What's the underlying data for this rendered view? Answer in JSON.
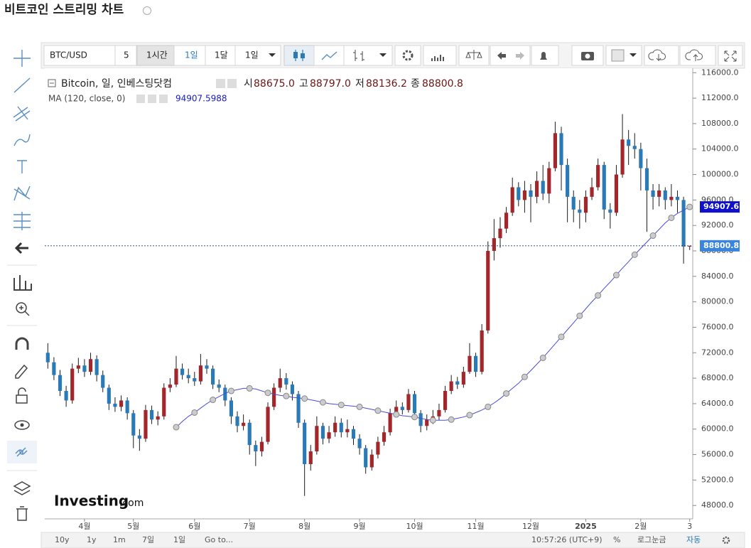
{
  "page": {
    "title": "비트코인 스트리밍 차트"
  },
  "toolbar": {
    "symbol": "BTC/USD",
    "interval_input": "5",
    "intervals": [
      "1시간",
      "1일",
      "1달"
    ],
    "range": "1일"
  },
  "footer": {
    "ranges": [
      "10y",
      "1y",
      "1m",
      "7일",
      "1일"
    ],
    "goto": "Go to...",
    "clock": "10:57:26 (UTC+9)",
    "percent": "%",
    "log": "로그눈금",
    "auto": "자동"
  },
  "chart_data": {
    "type": "candlestick",
    "title": "Bitcoin, 일, 인베스팅닷컴",
    "ohlc_legend": [
      {
        "label": "시",
        "value": "88675.0"
      },
      {
        "label": "고",
        "value": "88797.0"
      },
      {
        "label": "저",
        "value": "88136.2"
      },
      {
        "label": "종",
        "value": "88800.8"
      }
    ],
    "watermark": {
      "brand": "Investing",
      "suffix": ".com"
    },
    "color_up": "#a3262a",
    "color_down": "#2a7ab8",
    "wick_color": "#1b1b1b",
    "categories": [
      null,
      null,
      null,
      null,
      null,
      null,
      "4월",
      null,
      null,
      null,
      null,
      null,
      null,
      null,
      "5월",
      null,
      null,
      null,
      null,
      null,
      null,
      null,
      null,
      null,
      "6월",
      null,
      null,
      null,
      null,
      null,
      null,
      null,
      null,
      "7월",
      null,
      null,
      null,
      null,
      null,
      null,
      null,
      null,
      "8월",
      null,
      null,
      null,
      null,
      null,
      null,
      null,
      null,
      "9월",
      null,
      null,
      null,
      null,
      null,
      null,
      null,
      null,
      "10월",
      null,
      null,
      null,
      null,
      null,
      null,
      null,
      null,
      null,
      "11월",
      null,
      null,
      null,
      null,
      null,
      null,
      null,
      null,
      "12월",
      null,
      null,
      null,
      null,
      null,
      null,
      null,
      null,
      "2025",
      null,
      null,
      null,
      null,
      null,
      null,
      null,
      null,
      "2월",
      null,
      null,
      null,
      null,
      null,
      null,
      null,
      "3"
    ],
    "open": [
      72000,
      70500,
      68500,
      66000,
      64500,
      69500,
      70000,
      69000,
      71000,
      68500,
      66500,
      64000,
      63500,
      64500,
      62500,
      59000,
      58500,
      63000,
      61500,
      62000,
      66500,
      67000,
      69500,
      68500,
      68000,
      67500,
      70000,
      69500,
      67000,
      66500,
      64500,
      62000,
      60500,
      61000,
      57500,
      56500,
      58000,
      63500,
      66500,
      68000,
      67000,
      65500,
      61000,
      54500,
      56500,
      60500,
      58500,
      59500,
      61000,
      59500,
      60000,
      58500,
      57000,
      54000,
      56000,
      58000,
      59500,
      62500,
      63500,
      63000,
      65500,
      62500,
      60500,
      61500,
      62000,
      63000,
      66000,
      67500,
      67000,
      69000,
      71500,
      69000,
      75500,
      88000,
      90000,
      91500,
      94000,
      98000,
      96000,
      97500,
      96500,
      99000,
      97000,
      101000,
      106500,
      101500,
      96500,
      94500,
      94000,
      96500,
      98000,
      101500,
      94500,
      94000,
      100000,
      105500,
      104500,
      104000,
      101000,
      97500,
      96500,
      97500,
      96000,
      96500,
      96000,
      88675
    ],
    "high": [
      73500,
      71300,
      69300,
      66800,
      70300,
      71200,
      71000,
      72000,
      71600,
      69200,
      67000,
      65000,
      65300,
      65000,
      63000,
      60000,
      63800,
      63700,
      62800,
      67200,
      68000,
      71500,
      70300,
      69500,
      69000,
      71800,
      71000,
      70000,
      67800,
      67000,
      65000,
      62800,
      62300,
      61500,
      58200,
      58800,
      64200,
      67200,
      69500,
      68800,
      67500,
      66000,
      61500,
      57500,
      62000,
      61000,
      60500,
      62000,
      61700,
      61500,
      60500,
      59200,
      57500,
      56800,
      58800,
      60500,
      63200,
      64500,
      64200,
      66300,
      66000,
      63000,
      62300,
      63000,
      64000,
      66800,
      68500,
      68200,
      69800,
      73500,
      72000,
      76500,
      89500,
      93000,
      93300,
      94900,
      99500,
      98800,
      99000,
      98500,
      100500,
      101500,
      102000,
      108300,
      107500,
      102500,
      97500,
      96000,
      97500,
      99500,
      102500,
      102000,
      95500,
      101500,
      109500,
      107000,
      106500,
      105000,
      102500,
      98500,
      98500,
      98000,
      98500,
      97500,
      96500,
      88797
    ],
    "low": [
      69500,
      67700,
      65200,
      63500,
      64000,
      68800,
      68200,
      68500,
      67500,
      65800,
      63000,
      62700,
      62800,
      61500,
      57000,
      56600,
      58000,
      60800,
      60600,
      61500,
      65800,
      66600,
      67800,
      67200,
      66800,
      67000,
      68700,
      66300,
      65800,
      63600,
      60800,
      59500,
      59800,
      56000,
      54200,
      55700,
      57600,
      63000,
      65800,
      66200,
      64500,
      60200,
      49500,
      53500,
      56000,
      57600,
      57800,
      58800,
      58700,
      58700,
      57500,
      56000,
      53000,
      53500,
      55400,
      57400,
      59000,
      62000,
      62300,
      62600,
      61600,
      59500,
      59800,
      60800,
      61400,
      62600,
      65500,
      66300,
      66500,
      68700,
      68200,
      68600,
      75000,
      86500,
      88500,
      90800,
      93500,
      95000,
      94000,
      92500,
      95500,
      96000,
      95500,
      100500,
      97500,
      92500,
      92500,
      91500,
      92500,
      96000,
      97500,
      93000,
      91500,
      93500,
      99500,
      101500,
      102500,
      97500,
      91000,
      94500,
      95000,
      94500,
      95000,
      94000,
      86000,
      88136
    ],
    "close": [
      70500,
      68500,
      66000,
      64500,
      69500,
      70000,
      69000,
      71000,
      68500,
      66500,
      64000,
      63500,
      64500,
      62500,
      59000,
      58500,
      63000,
      61500,
      62000,
      66500,
      67000,
      69500,
      68500,
      68000,
      67500,
      70000,
      69500,
      67000,
      66500,
      64500,
      62000,
      60500,
      61000,
      57500,
      56500,
      58000,
      63500,
      66500,
      68000,
      67000,
      65500,
      61000,
      54500,
      56500,
      60500,
      58500,
      59500,
      61000,
      59500,
      60000,
      58500,
      57000,
      54000,
      56000,
      58000,
      59500,
      62500,
      63500,
      63000,
      65500,
      62500,
      60500,
      61500,
      62000,
      63000,
      66000,
      67500,
      67000,
      69000,
      71500,
      69000,
      75500,
      88000,
      90000,
      91500,
      94000,
      98000,
      96000,
      97500,
      96500,
      99000,
      97000,
      101000,
      106500,
      101500,
      96500,
      94500,
      94000,
      96500,
      98000,
      101500,
      94500,
      94000,
      100000,
      105500,
      104500,
      104000,
      101000,
      97500,
      96500,
      97500,
      96000,
      96500,
      96000,
      88675,
      88800.8
    ],
    "last_price": {
      "value": 88800.8,
      "label": "88800.8"
    },
    "ma": {
      "name": "MA (120, close, 0)",
      "color": "#4a4ad8",
      "legend_value": "94907.5988",
      "value_label": "94907.6",
      "values": [
        null,
        null,
        null,
        null,
        null,
        null,
        null,
        null,
        null,
        null,
        null,
        null,
        null,
        null,
        null,
        null,
        null,
        null,
        null,
        null,
        null,
        60300,
        61200,
        62000,
        62600,
        63300,
        64000,
        64600,
        65100,
        65600,
        66000,
        66200,
        66400,
        66400,
        66300,
        66000,
        65700,
        65500,
        65300,
        65200,
        65000,
        64900,
        64800,
        64600,
        64400,
        64200,
        64000,
        63900,
        63800,
        63700,
        63600,
        63500,
        63300,
        63100,
        62900,
        62700,
        62500,
        62300,
        62100,
        62000,
        61900,
        61700,
        61500,
        61400,
        61400,
        61400,
        61500,
        61700,
        61900,
        62200,
        62600,
        63000,
        63500,
        64100,
        64800,
        65600,
        66400,
        67200,
        68200,
        69200,
        70200,
        71200,
        72300,
        73400,
        74500,
        75600,
        76700,
        77800,
        78900,
        80000,
        81000,
        82100,
        83100,
        84200,
        85300,
        86300,
        87400,
        88400,
        89400,
        90400,
        91400,
        92400,
        93200,
        93900,
        94400,
        94907.5988
      ]
    },
    "ylim": [
      45900,
      116700
    ],
    "yticks": [
      {
        "value": 48000,
        "label": "48000.0"
      },
      {
        "value": 52000,
        "label": "52000.0"
      },
      {
        "value": 56000,
        "label": "56000.0"
      },
      {
        "value": 60000,
        "label": "60000.0"
      },
      {
        "value": 64000,
        "label": "64000.0"
      },
      {
        "value": 68000,
        "label": "68000.0"
      },
      {
        "value": 72000,
        "label": "72000.0"
      },
      {
        "value": 76000,
        "label": "76000.0"
      },
      {
        "value": 80000,
        "label": "80000.0"
      },
      {
        "value": 84000,
        "label": "84000.0"
      },
      {
        "value": 88000,
        "label": "88000.0"
      },
      {
        "value": 92000,
        "label": "92000.0"
      },
      {
        "value": 96000,
        "label": "96000.0"
      },
      {
        "value": 100000,
        "label": "100000.0"
      },
      {
        "value": 104000,
        "label": "104000.0"
      },
      {
        "value": 108000,
        "label": "108000.0"
      },
      {
        "value": 112000,
        "label": "112000.0"
      },
      {
        "value": 116000,
        "label": "116000.0"
      }
    ],
    "grid": false
  }
}
